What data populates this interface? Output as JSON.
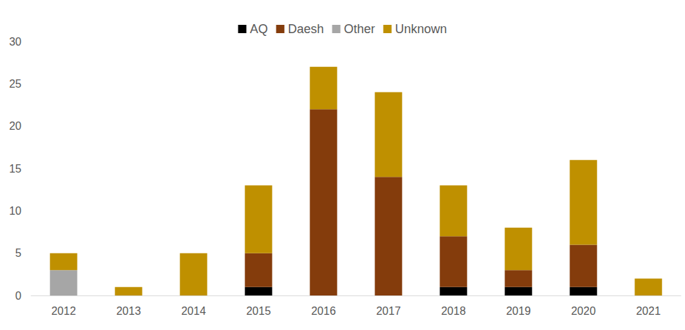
{
  "chart_data": {
    "type": "bar",
    "stacked": true,
    "grid": false,
    "legend": "top",
    "categories": [
      "2012",
      "2013",
      "2014",
      "2015",
      "2016",
      "2017",
      "2018",
      "2019",
      "2020",
      "2021"
    ],
    "series": [
      {
        "name": "AQ",
        "color": "#000000",
        "values": [
          0,
          0,
          0,
          1,
          0,
          0,
          1,
          1,
          1,
          0
        ]
      },
      {
        "name": "Daesh",
        "color": "#843C0C",
        "values": [
          0,
          0,
          0,
          4,
          22,
          14,
          6,
          2,
          5,
          0
        ]
      },
      {
        "name": "Other",
        "color": "#A6A6A6",
        "values": [
          3,
          0,
          0,
          0,
          0,
          0,
          0,
          0,
          0,
          0
        ]
      },
      {
        "name": "Unknown",
        "color": "#BF9000",
        "values": [
          2,
          1,
          5,
          8,
          5,
          10,
          6,
          5,
          10,
          2
        ]
      }
    ],
    "ylim": [
      0,
      30
    ],
    "yticks": [
      0,
      5,
      10,
      15,
      20,
      25,
      30
    ]
  }
}
